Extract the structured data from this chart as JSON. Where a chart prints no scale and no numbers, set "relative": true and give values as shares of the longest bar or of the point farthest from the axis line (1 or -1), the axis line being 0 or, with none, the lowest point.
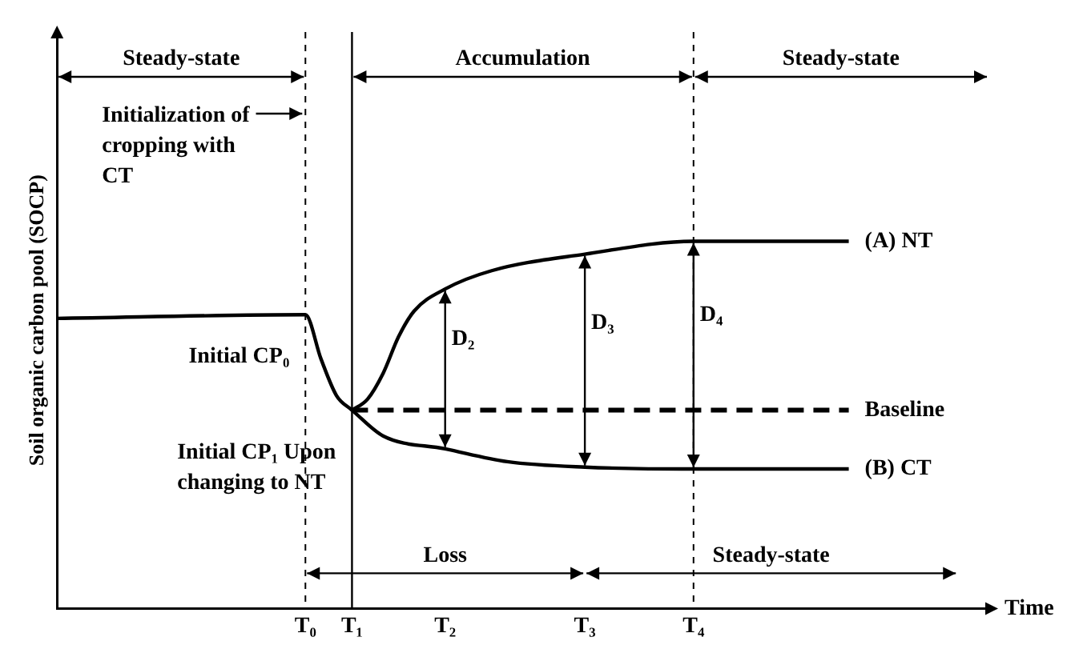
{
  "chart_data": {
    "type": "line",
    "relative": true,
    "xlabel": "Time",
    "ylabel": "Soil organic carbon pool (SOCP)",
    "marker": "none",
    "categories": [
      null,
      null,
      null,
      null,
      null,
      null,
      null,
      null,
      null,
      null,
      null,
      null,
      null,
      null,
      null,
      null,
      "T₀",
      null,
      null,
      "T₁",
      null,
      null,
      null,
      null,
      null,
      "T₂",
      null,
      null,
      null,
      null,
      null,
      null,
      null,
      null,
      "T₃",
      null,
      null,
      null,
      null,
      null,
      null,
      "T₄",
      null,
      null,
      null,
      null,
      null,
      null,
      null,
      null,
      null,
      null,
      null,
      null,
      null,
      null,
      null,
      null,
      null,
      null,
      null
    ],
    "series": [
      {
        "color": "#000000",
        "line_style": "solid",
        "values": [
          0.79,
          null,
          null,
          null,
          null,
          null,
          null,
          null,
          null,
          null,
          null,
          null,
          null,
          null,
          null,
          null,
          0.8,
          0.68,
          0.58,
          0.54,
          null,
          null,
          null,
          null,
          null,
          null,
          null,
          null,
          null,
          null,
          null,
          null,
          null,
          null,
          null,
          null,
          null,
          null,
          null,
          null,
          null,
          null,
          null,
          null,
          null,
          null,
          null,
          null,
          null,
          null,
          null,
          null,
          null,
          null,
          null,
          null,
          null,
          null,
          null,
          null,
          null
        ]
      },
      {
        "name": "(A) NT",
        "color": "#000000",
        "line_style": "solid",
        "values": [
          null,
          null,
          null,
          null,
          null,
          null,
          null,
          null,
          null,
          null,
          null,
          null,
          null,
          null,
          null,
          null,
          null,
          null,
          null,
          0.54,
          0.57,
          0.64,
          0.74,
          0.81,
          null,
          0.87,
          null,
          null,
          0.92,
          null,
          null,
          null,
          null,
          null,
          0.965,
          null,
          null,
          null,
          null,
          null,
          null,
          1,
          null,
          null,
          null,
          null,
          null,
          null,
          null,
          null,
          null,
          1,
          null,
          null,
          null,
          null,
          null,
          null,
          null,
          null,
          null
        ]
      },
      {
        "name": "(B) CT",
        "color": "#000000",
        "line_style": "solid",
        "values": [
          null,
          null,
          null,
          null,
          null,
          null,
          null,
          null,
          null,
          null,
          null,
          null,
          null,
          null,
          null,
          null,
          null,
          null,
          null,
          0.54,
          null,
          0.47,
          null,
          null,
          null,
          0.435,
          null,
          null,
          null,
          0.4,
          null,
          null,
          null,
          null,
          0.385,
          null,
          null,
          null,
          null,
          null,
          null,
          0.38,
          null,
          null,
          null,
          null,
          null,
          null,
          null,
          null,
          null,
          0.38,
          null,
          null,
          null,
          null,
          null,
          null,
          null,
          null,
          null
        ]
      },
      {
        "name": "Baseline",
        "color": "#000000",
        "line_style": "dashed",
        "values": [
          null,
          null,
          null,
          null,
          null,
          null,
          null,
          null,
          null,
          null,
          null,
          null,
          null,
          null,
          null,
          null,
          null,
          null,
          null,
          0.54,
          null,
          null,
          null,
          null,
          null,
          null,
          null,
          null,
          null,
          null,
          null,
          null,
          null,
          null,
          null,
          null,
          null,
          null,
          null,
          null,
          null,
          null,
          null,
          null,
          null,
          null,
          null,
          null,
          null,
          null,
          null,
          0.54,
          null,
          null,
          null,
          null,
          null,
          null,
          null,
          null,
          null
        ]
      }
    ],
    "ref_lines": [
      {
        "axis": "x",
        "value": "T₀",
        "line_style": "dashed"
      },
      {
        "axis": "x",
        "value": "T₁",
        "line_style": "solid"
      },
      {
        "axis": "x",
        "value": "T₄",
        "line_style": "dashed"
      }
    ],
    "annotations": [
      "Steady-state",
      "Accumulation",
      "Steady-state",
      "Loss",
      "Steady-state",
      "Initialization of cropping with CT",
      "D₂",
      "D₃",
      "D₄",
      {
        "text": "Initial CP₀",
        "x": "T₀",
        "y": 0.8
      },
      {
        "text": "Initial CP₁ Upon changing to NT",
        "x": "T₁",
        "y": 0.54
      }
    ]
  }
}
